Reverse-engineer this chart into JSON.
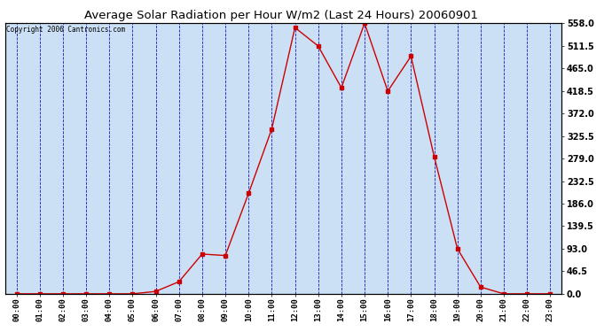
{
  "title": "Average Solar Radiation per Hour W/m2 (Last 24 Hours) 20060901",
  "copyright": "Copyright 2006 Cantronics.com",
  "hours": [
    "00:00",
    "01:00",
    "02:00",
    "03:00",
    "04:00",
    "05:00",
    "06:00",
    "07:00",
    "08:00",
    "09:00",
    "10:00",
    "11:00",
    "12:00",
    "13:00",
    "14:00",
    "15:00",
    "16:00",
    "17:00",
    "18:00",
    "19:00",
    "20:00",
    "21:00",
    "22:00",
    "23:00"
  ],
  "values": [
    0,
    0,
    0,
    0,
    0,
    0,
    5,
    25,
    82,
    79,
    207,
    340,
    549,
    511,
    425,
    558,
    418,
    490,
    283,
    93,
    14,
    0,
    0,
    0
  ],
  "line_color": "#cc0000",
  "marker_color": "#cc0000",
  "background_color": "#cce0f5",
  "grid_color": "#0000bb",
  "title_color": "#000000",
  "copyright_color": "#000000",
  "yticks": [
    0.0,
    46.5,
    93.0,
    139.5,
    186.0,
    232.5,
    279.0,
    325.5,
    372.0,
    418.5,
    465.0,
    511.5,
    558.0
  ],
  "ymax": 558.0,
  "ymin": 0.0,
  "fig_bg": "#ffffff"
}
